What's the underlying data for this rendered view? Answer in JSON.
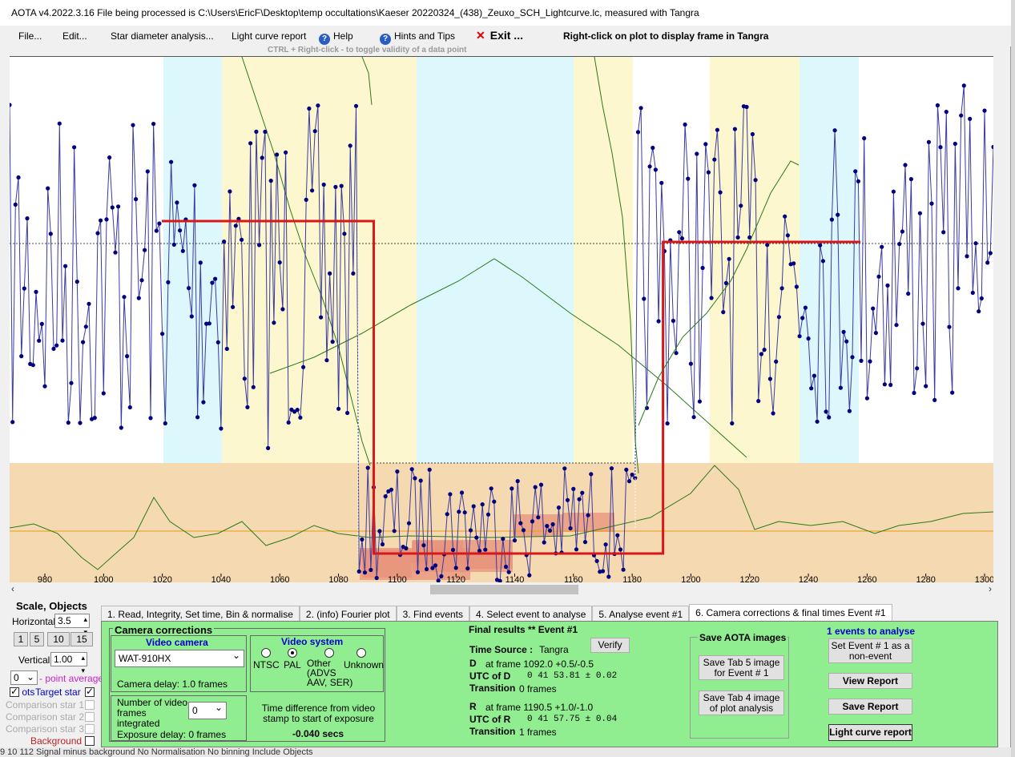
{
  "window": {
    "title": "AOTA v4.2022.3.16   File being processed is C:\\Users\\EricF\\Desktop\\temp occultations\\Kaeser 20220324_(438)_Zeuxo_SCH_Lightcurve.lc, measured with Tangra"
  },
  "menu": {
    "file": "File...",
    "edit": "Edit...",
    "star_diameter": "Star diameter analysis...",
    "lc_report": "Light curve report",
    "help": "Help",
    "hints": "Hints and Tips",
    "exit": "Exit ...",
    "right_click_note": "Right-click on plot to display frame in Tangra"
  },
  "hint_line": "CTRL + Right-click  -  to toggle validity of a data point",
  "chart_data": {
    "type": "line",
    "series": [],
    "x_ticks": [
      "980",
      "1000",
      "1020",
      "1040",
      "1060",
      "1080",
      "1100",
      "1120",
      "1140",
      "1160",
      "1180",
      "1200",
      "1220",
      "1240",
      "1260",
      "1280",
      "1300"
    ],
    "xlim": [
      968,
      1303
    ],
    "events": {
      "D_frame": 1092.0,
      "R_frame": 1190.5,
      "baseline_level_before": "high",
      "event_level": "low"
    }
  },
  "left": {
    "scale_objects": "Scale,  Objects",
    "horizontal_label": "Horizontal",
    "horizontal_value": "3.5",
    "zoom_buttons": [
      "1",
      "5",
      "10",
      "15"
    ],
    "vertical_label": "Vertical",
    "vertical_value": "1.00",
    "point_avg_value": "0",
    "point_avg_label": "- point average",
    "pts_label": "ots",
    "target_star": "Target star",
    "comp1": "Comparison star 1",
    "comp2": "Comparison star 2",
    "comp3": "Comparison star 3",
    "background": "Background"
  },
  "tabs": [
    "1. Read, Integrity, Set time, Bin & normalise",
    "2. (info)  Fourier plot",
    "3. Find events",
    "4. Select event to analyse",
    "5. Analyse event #1",
    "6. Camera corrections & final times Event #1"
  ],
  "camera": {
    "title": "Camera corrections",
    "video_camera": "Video camera",
    "camera_model": "WAT-910HX",
    "camera_delay": "Camera delay: 1.0 frames",
    "video_system": "Video system",
    "ntsc": "NTSC",
    "pal": "PAL",
    "other": "Other\n(ADVS\nAAV, SER)",
    "unknown": "Unknown",
    "frames_integrated_label": "Number of video frames integrated",
    "frames_integrated_value": "0",
    "exposure_delay": "Exposure delay: 0 frames",
    "time_diff_label": "Time difference from video stamp to start of exposure",
    "time_diff_value": "-0.040 secs"
  },
  "results": {
    "title": "Final results  **   Event #1",
    "time_source_label": "Time Source :",
    "time_source_value": "Tangra",
    "verify": "Verify",
    "d_label": "D",
    "d_frame": "at frame 1092.0  +0.5/-0.5",
    "utc_d_label": "UTC of D",
    "utc_d_value": "0  41  53.81  ± 0.02",
    "trans_label": "Transition",
    "trans_d": "0 frames",
    "r_label": "R",
    "r_frame": "at frame 1190.5  +1.0/-1.0",
    "utc_r_label": "UTC of R",
    "utc_r_value": "0  41  57.75  ± 0.04",
    "trans_r": "1 frames"
  },
  "save": {
    "title": "Save AOTA images",
    "tab5": "Save Tab 5 image for Event # 1",
    "tab4": "Save Tab 4 image of plot analysis"
  },
  "events": {
    "title": "1  events to analyse",
    "set_non_event": "Set Event # 1 as a non-event",
    "view_report": "View Report",
    "save_report": "Save Report",
    "lc_report": "Light curve report"
  },
  "status": "  9  10      112       Signal minus background       No Normalisation       No binning       Include Objects"
}
